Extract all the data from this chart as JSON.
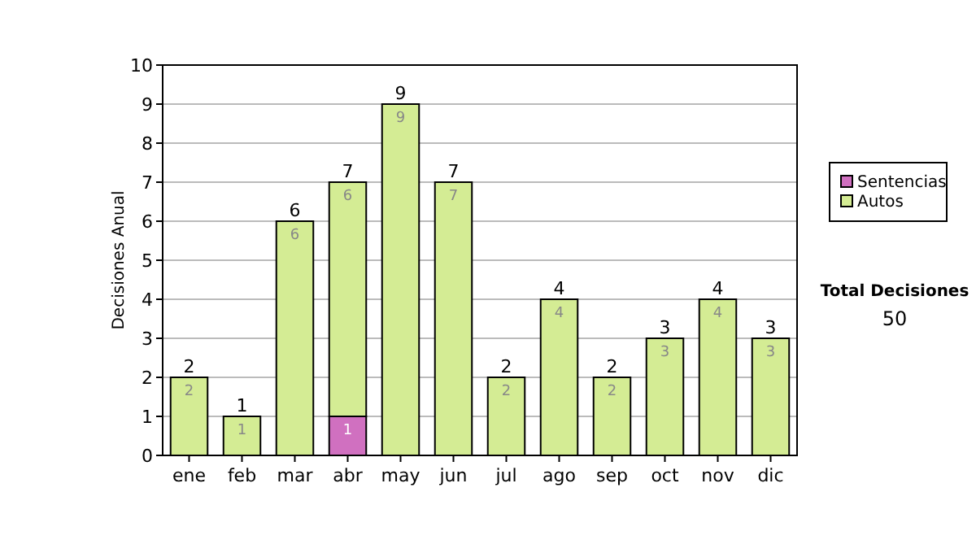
{
  "chart_data": {
    "type": "bar",
    "stacked": true,
    "ylabel": "Decisiones Anual",
    "categories": [
      "ene",
      "feb",
      "mar",
      "abr",
      "may",
      "jun",
      "jul",
      "ago",
      "sep",
      "oct",
      "nov",
      "dic"
    ],
    "series": [
      {
        "name": "Sentencias",
        "color": "#d070c0",
        "values": [
          null,
          null,
          null,
          1,
          null,
          null,
          null,
          null,
          null,
          null,
          null,
          null
        ]
      },
      {
        "name": "Autos",
        "color": "#d4ec94",
        "values": [
          2,
          1,
          6,
          6,
          9,
          7,
          2,
          4,
          2,
          3,
          4,
          3
        ]
      }
    ],
    "totals": [
      "2",
      "1",
      "6",
      "7",
      "9",
      "7",
      "2",
      "4",
      "2",
      "3",
      "4",
      "3"
    ],
    "data_labels": true,
    "ylim": [
      0,
      10
    ],
    "yticks": [
      0,
      1,
      2,
      3,
      4,
      5,
      6,
      7,
      8,
      9,
      10
    ],
    "grid": "y",
    "legend": "right",
    "annotations": [
      "Total Decisiones",
      "50"
    ]
  }
}
